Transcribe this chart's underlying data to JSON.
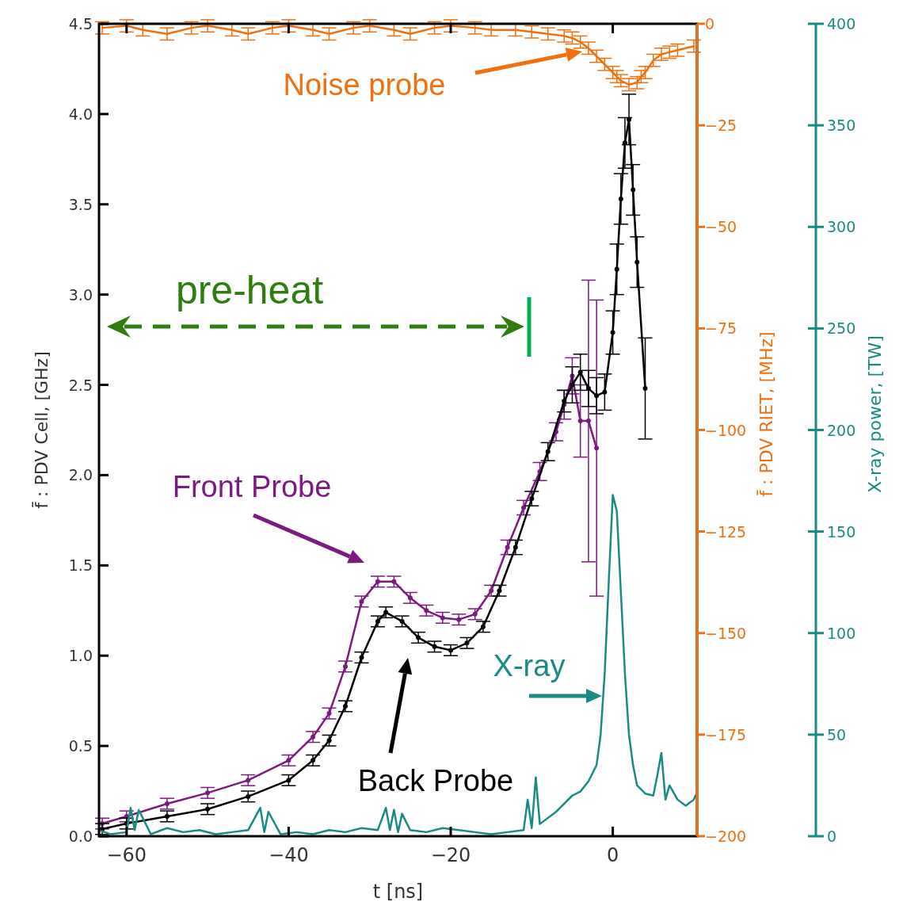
{
  "chart_data": {
    "type": "line",
    "xlabel": "t [ns]",
    "ylabel": "f̄ : PDV Cell, [GHz]",
    "y2label": "f̄ : PDV RIET, [MHz]",
    "y3label": "X-ray power, [TW]",
    "xlim": [
      -63.4,
      10.4
    ],
    "xticks": [
      {
        "value": -60,
        "label": "−60"
      },
      {
        "value": -40,
        "label": "−40"
      },
      {
        "value": -20,
        "label": "−20"
      },
      0
    ],
    "ylim": [
      0,
      4.5
    ],
    "yticks": [
      {
        "value": 0,
        "label": "0.0"
      },
      {
        "value": 0.5,
        "label": "0.5"
      },
      {
        "value": 1,
        "label": "1.0"
      },
      {
        "value": 1.5,
        "label": "1.5"
      },
      {
        "value": 2,
        "label": "2.0"
      },
      {
        "value": 2.5,
        "label": "2.5"
      },
      {
        "value": 3,
        "label": "3.0"
      },
      {
        "value": 3.5,
        "label": "3.5"
      },
      {
        "value": 4,
        "label": "4.0"
      },
      {
        "value": 4.5,
        "label": "4.5"
      }
    ],
    "y2lim": [
      -200,
      0
    ],
    "y2ticks": [
      {
        "value": -200,
        "label": "−200"
      },
      {
        "value": -175,
        "label": "−175"
      },
      {
        "value": -150,
        "label": "−150"
      },
      {
        "value": -125,
        "label": "−125"
      },
      {
        "value": -100,
        "label": "−100"
      },
      {
        "value": -75,
        "label": "−75"
      },
      {
        "value": -50,
        "label": "−50"
      },
      {
        "value": -25,
        "label": "−25"
      },
      0
    ],
    "y3lim": [
      0,
      400
    ],
    "y3ticks": [
      0,
      50,
      100,
      150,
      200,
      250,
      300,
      350,
      400
    ],
    "series": [
      {
        "color": "#7b1a7f",
        "marker": "circle",
        "x": [
          -63,
          -60,
          -55,
          -50,
          -45,
          -40,
          -37,
          -35,
          -33,
          -31,
          -29,
          -27,
          -25,
          -23,
          -21,
          -19,
          -17,
          -15,
          -13,
          -11,
          -9,
          -7,
          -6,
          -5,
          -4,
          -3,
          -2
        ],
        "values": [
          0.07,
          0.11,
          0.18,
          0.24,
          0.31,
          0.42,
          0.55,
          0.68,
          0.94,
          1.3,
          1.41,
          1.41,
          1.32,
          1.25,
          1.21,
          1.2,
          1.23,
          1.36,
          1.6,
          1.82,
          2.02,
          2.24,
          2.39,
          2.55,
          2.3,
          2.3,
          2.15
        ],
        "errors": [
          0.03,
          0.03,
          0.03,
          0.03,
          0.03,
          0.03,
          0.03,
          0.03,
          0.03,
          0.03,
          0.03,
          0.03,
          0.03,
          0.03,
          0.03,
          0.03,
          0.03,
          0.03,
          0.04,
          0.04,
          0.05,
          0.05,
          0.08,
          0.1,
          0.2,
          0.78,
          0.82
        ]
      },
      {
        "color": "#000000",
        "marker": "circle",
        "x": [
          -63,
          -60,
          -55,
          -50,
          -45,
          -40,
          -37,
          -35,
          -33,
          -31,
          -29,
          -28,
          -26,
          -24,
          -22,
          -20,
          -18,
          -16,
          -14,
          -12,
          -10,
          -8,
          -6,
          -5,
          -4,
          -3,
          -2,
          -1,
          0,
          0.5,
          1,
          1.5,
          2,
          2.5,
          3,
          4
        ],
        "values": [
          0.04,
          0.07,
          0.11,
          0.15,
          0.22,
          0.31,
          0.42,
          0.53,
          0.72,
          0.99,
          1.19,
          1.24,
          1.19,
          1.1,
          1.05,
          1.03,
          1.07,
          1.16,
          1.36,
          1.6,
          1.87,
          2.13,
          2.41,
          2.5,
          2.57,
          2.48,
          2.44,
          2.46,
          2.79,
          3.14,
          3.53,
          3.84,
          3.97,
          3.58,
          3.18,
          2.48
        ],
        "errors": [
          0.03,
          0.03,
          0.03,
          0.03,
          0.03,
          0.03,
          0.03,
          0.03,
          0.03,
          0.03,
          0.03,
          0.03,
          0.03,
          0.03,
          0.03,
          0.03,
          0.03,
          0.03,
          0.03,
          0.04,
          0.04,
          0.05,
          0.06,
          0.1,
          0.1,
          0.1,
          0.1,
          0.1,
          0.12,
          0.14,
          0.14,
          0.14,
          0.14,
          0.14,
          0.14,
          0.28
        ]
      },
      {
        "color": "#f07010",
        "marker": "none",
        "axis": "y2",
        "x": [
          -63,
          -60,
          -58,
          -55,
          -52,
          -50,
          -47,
          -45,
          -42,
          -40,
          -37,
          -35,
          -32,
          -30,
          -27,
          -25,
          -22,
          -20,
          -17,
          -15,
          -12,
          -10,
          -8,
          -6,
          -5,
          -4,
          -3,
          -2,
          -1,
          0,
          0.5,
          1,
          2,
          3,
          3.5,
          4,
          5,
          6,
          7,
          8,
          10
        ],
        "values": [
          -1,
          -0.5,
          -1.5,
          -2.5,
          -1,
          -0.5,
          -1.5,
          -2.5,
          -1,
          -0.5,
          -1.5,
          -2.5,
          -1,
          -0.5,
          -1.5,
          -2.5,
          -1,
          -0.5,
          -1,
          -1.5,
          -1.5,
          -2,
          -2.5,
          -3,
          -3.5,
          -4.5,
          -6,
          -8,
          -10,
          -12,
          -13,
          -14,
          -15,
          -14.5,
          -13,
          -12,
          -9,
          -7.5,
          -7,
          -6.5,
          -5.5
        ],
        "errors": [
          1.5,
          1.5,
          1.5,
          1.5,
          1.5,
          1.5,
          1.5,
          1.5,
          1.5,
          1.5,
          1.5,
          1.5,
          1.5,
          1.5,
          1.5,
          1.5,
          1.5,
          1.5,
          1.5,
          1.5,
          1.5,
          1.5,
          1.5,
          1.5,
          1.5,
          1.5,
          1.5,
          1.5,
          1.5,
          1.5,
          1.5,
          1.5,
          1.5,
          1.5,
          1.5,
          1.5,
          1.5,
          1.5,
          1.5,
          1.5,
          1.5
        ]
      },
      {
        "color": "#1a8a85",
        "marker": "none",
        "axis": "y3",
        "x": [
          -63.4,
          -62,
          -60,
          -59.5,
          -59,
          -58.5,
          -57,
          -55,
          -53,
          -51,
          -49,
          -47,
          -45,
          -43.5,
          -43,
          -42.5,
          -41,
          -39,
          -37,
          -35,
          -33,
          -31,
          -29,
          -28,
          -27.5,
          -27,
          -26.5,
          -26,
          -25,
          -23,
          -21,
          -19,
          -17,
          -15,
          -13,
          -11,
          -10.5,
          -10,
          -9.5,
          -9,
          -7,
          -5,
          -4,
          -3,
          -2,
          -1.5,
          -1,
          -0.5,
          0,
          0.5,
          1,
          1.5,
          2,
          2.5,
          3,
          4,
          5,
          5.5,
          6,
          6.5,
          7,
          8,
          9,
          10,
          10.2
        ],
        "values": [
          3,
          1,
          2,
          14,
          3,
          13,
          1,
          4,
          2,
          3,
          1,
          2,
          3,
          14,
          2,
          12,
          1,
          2,
          1,
          3,
          2,
          4,
          3,
          14,
          3,
          13,
          2,
          11,
          3,
          2,
          4,
          3,
          2,
          1,
          2,
          3,
          18,
          4,
          29,
          6,
          12,
          20,
          22,
          27,
          35,
          50,
          80,
          125,
          168,
          160,
          120,
          80,
          50,
          35,
          25,
          21,
          20,
          30,
          41,
          18,
          25,
          18,
          15,
          18,
          20
        ]
      }
    ],
    "annotations": [
      "Noise probe",
      "Front Probe",
      "Back Probe",
      "X-ray",
      "pre-heat"
    ]
  }
}
